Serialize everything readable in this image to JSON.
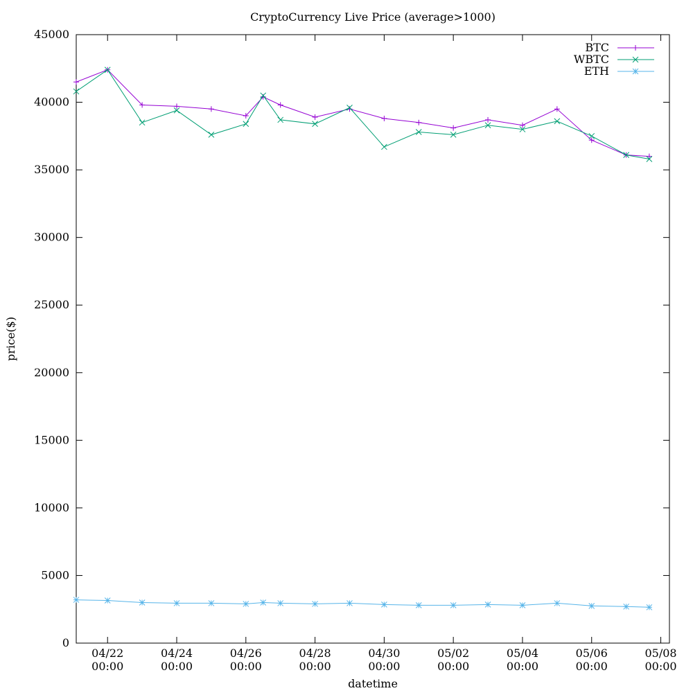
{
  "chart_data": {
    "type": "line",
    "title": "CryptoCurrency Live Price (average>1000)",
    "xlabel": "datetime",
    "ylabel": "price($)",
    "x_range": [
      "04/21 02:15",
      "05/08 06:00"
    ],
    "ylim": [
      0,
      45000
    ],
    "yticks": [
      0,
      5000,
      10000,
      15000,
      20000,
      25000,
      30000,
      35000,
      40000,
      45000
    ],
    "xticks": [
      {
        "value": "04/22 00:00",
        "line1": "04/22",
        "line2": "00:00"
      },
      {
        "value": "04/24 00:00",
        "line1": "04/24",
        "line2": "00:00"
      },
      {
        "value": "04/26 00:00",
        "line1": "04/26",
        "line2": "00:00"
      },
      {
        "value": "04/28 00:00",
        "line1": "04/28",
        "line2": "00:00"
      },
      {
        "value": "04/30 00:00",
        "line1": "04/30",
        "line2": "00:00"
      },
      {
        "value": "05/02 00:00",
        "line1": "05/02",
        "line2": "00:00"
      },
      {
        "value": "05/04 00:00",
        "line1": "05/04",
        "line2": "00:00"
      },
      {
        "value": "05/06 00:00",
        "line1": "05/06",
        "line2": "00:00"
      },
      {
        "value": "05/08 00:00",
        "line1": "05/08",
        "line2": "00:00"
      }
    ],
    "grid": false,
    "legend_position": "top-right",
    "series": [
      {
        "name": "BTC",
        "color": "#9400d3",
        "marker": "plus",
        "points": [
          [
            "04/21 02:15",
            41500
          ],
          [
            "04/22 00:00",
            42400
          ],
          [
            "04/23 00:00",
            39800
          ],
          [
            "04/24 00:00",
            39700
          ],
          [
            "04/25 00:00",
            39500
          ],
          [
            "04/26 00:00",
            39000
          ],
          [
            "04/26 12:00",
            40400
          ],
          [
            "04/27 00:00",
            39800
          ],
          [
            "04/28 00:00",
            38900
          ],
          [
            "04/29 00:00",
            39500
          ],
          [
            "04/30 00:00",
            38800
          ],
          [
            "05/01 00:00",
            38500
          ],
          [
            "05/02 00:00",
            38100
          ],
          [
            "05/03 00:00",
            38700
          ],
          [
            "05/04 00:00",
            38300
          ],
          [
            "05/05 00:00",
            39500
          ],
          [
            "05/06 00:00",
            37200
          ],
          [
            "05/07 00:00",
            36100
          ],
          [
            "05/07 16:00",
            36000
          ]
        ]
      },
      {
        "name": "WBTC",
        "color": "#009e73",
        "marker": "cross",
        "points": [
          [
            "04/21 02:15",
            40800
          ],
          [
            "04/22 00:00",
            42400
          ],
          [
            "04/23 00:00",
            38500
          ],
          [
            "04/24 00:00",
            39400
          ],
          [
            "04/25 00:00",
            37600
          ],
          [
            "04/26 00:00",
            38400
          ],
          [
            "04/26 12:00",
            40500
          ],
          [
            "04/27 00:00",
            38700
          ],
          [
            "04/28 00:00",
            38400
          ],
          [
            "04/29 00:00",
            39600
          ],
          [
            "04/30 00:00",
            36700
          ],
          [
            "05/01 00:00",
            37800
          ],
          [
            "05/02 00:00",
            37600
          ],
          [
            "05/03 00:00",
            38300
          ],
          [
            "05/04 00:00",
            38000
          ],
          [
            "05/05 00:00",
            38600
          ],
          [
            "05/06 00:00",
            37500
          ],
          [
            "05/07 00:00",
            36100
          ],
          [
            "05/07 16:00",
            35800
          ]
        ]
      },
      {
        "name": "ETH",
        "color": "#56b4e9",
        "marker": "star",
        "points": [
          [
            "04/21 02:15",
            3200
          ],
          [
            "04/22 00:00",
            3150
          ],
          [
            "04/23 00:00",
            3000
          ],
          [
            "04/24 00:00",
            2950
          ],
          [
            "04/25 00:00",
            2950
          ],
          [
            "04/26 00:00",
            2900
          ],
          [
            "04/26 12:00",
            3000
          ],
          [
            "04/27 00:00",
            2950
          ],
          [
            "04/28 00:00",
            2900
          ],
          [
            "04/29 00:00",
            2950
          ],
          [
            "04/30 00:00",
            2850
          ],
          [
            "05/01 00:00",
            2800
          ],
          [
            "05/02 00:00",
            2800
          ],
          [
            "05/03 00:00",
            2850
          ],
          [
            "05/04 00:00",
            2800
          ],
          [
            "05/05 00:00",
            2950
          ],
          [
            "05/06 00:00",
            2750
          ],
          [
            "05/07 00:00",
            2700
          ],
          [
            "05/07 16:00",
            2650
          ]
        ]
      }
    ]
  }
}
